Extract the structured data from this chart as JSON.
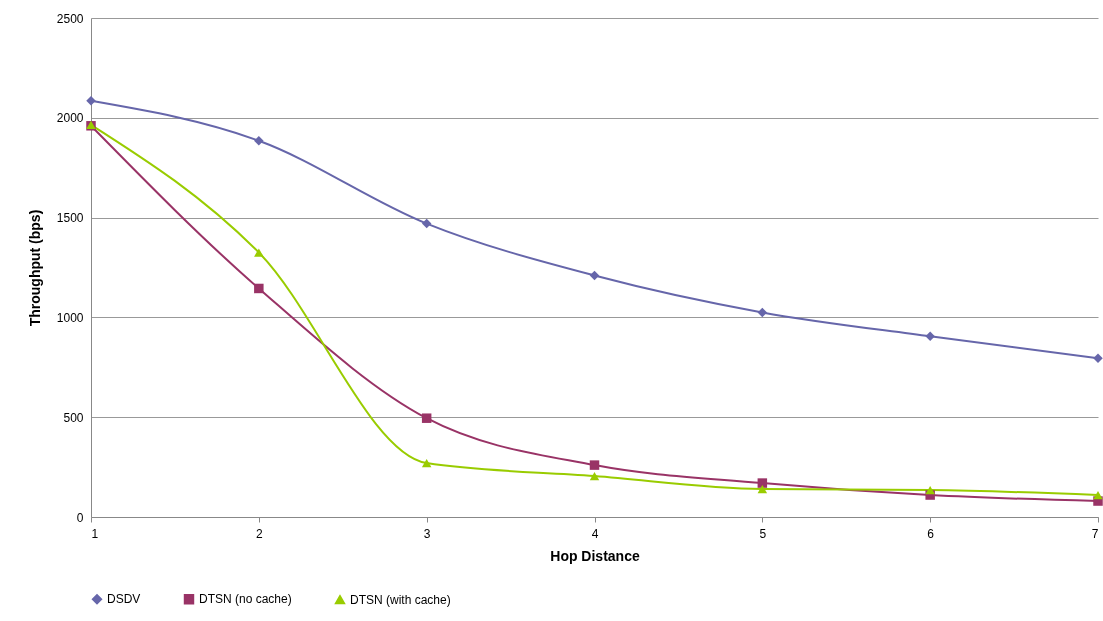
{
  "chart_data": {
    "type": "line",
    "xlabel": "Hop Distance",
    "ylabel": "Throughput (bps)",
    "x": [
      1,
      2,
      3,
      4,
      5,
      6,
      7
    ],
    "series": [
      {
        "name": "DSDV",
        "color": "#6666aa",
        "marker": "diamond",
        "values": [
          2085,
          1885,
          1470,
          1210,
          1025,
          905,
          795
        ]
      },
      {
        "name": "DTSN (no cache)",
        "color": "#993366",
        "marker": "square",
        "values": [
          1960,
          1145,
          495,
          260,
          170,
          110,
          80
        ]
      },
      {
        "name": "DTSN (with cache)",
        "color": "#99cc00",
        "marker": "triangle",
        "values": [
          1965,
          1325,
          270,
          205,
          140,
          135,
          110
        ]
      }
    ],
    "xlim": [
      1,
      7
    ],
    "xticks": [
      1,
      2,
      3,
      4,
      5,
      6,
      7
    ],
    "ylim": [
      0,
      2500
    ],
    "yticks": [
      0,
      500,
      1000,
      1500,
      2000,
      2500
    ],
    "grid": "y",
    "legend": "bottom",
    "line_style": "solid"
  }
}
